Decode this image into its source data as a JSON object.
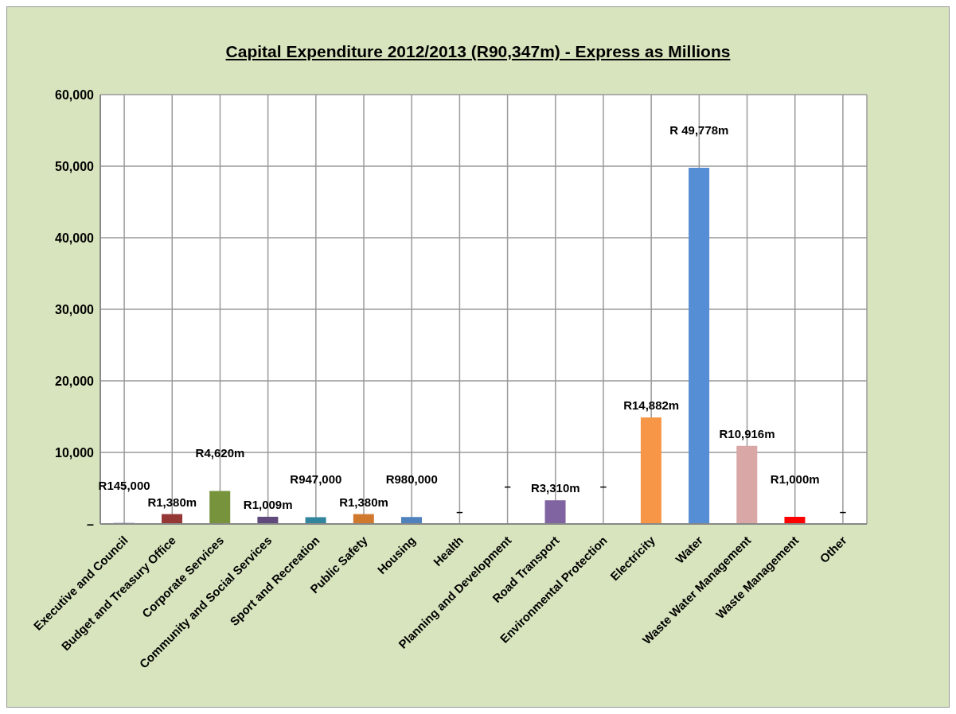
{
  "chart_data": {
    "type": "bar",
    "title": "Capital Expenditure 2012/2013 (R90,347m) - Express as Millions",
    "categories": [
      "Executive and Council",
      "Budget and Treasury Office",
      "Corporate Services",
      "Community and Social Services",
      "Sport and Recreation",
      "Public Safety",
      "Housing",
      "Health",
      "Planning and Development",
      "Road Transport",
      "Environmental Protection",
      "Electricity",
      "Water",
      "Waste Water Management",
      "Waste Management",
      "Other"
    ],
    "values": [
      145,
      1380,
      4620,
      1009,
      947,
      1380,
      980,
      0,
      0,
      3310,
      0,
      14882,
      49778,
      10916,
      1000,
      0
    ],
    "value_labels": [
      "R145,000",
      "R1,380m",
      "R4,620m",
      "R1,009m",
      "R947,000",
      "R1,380m",
      "R980,000",
      "–",
      "–",
      "R3,310m",
      "–",
      "R14,882m",
      "R 49,778m",
      "R10,916m",
      "R1,000m",
      "–"
    ],
    "colors": [
      "#5a6fa0",
      "#953735",
      "#77933c",
      "#604a7b",
      "#31859c",
      "#d0782e",
      "#4f81bd",
      "#4f81bd",
      "#4f81bd",
      "#8064a2",
      "#4f81bd",
      "#f79646",
      "#558ed5",
      "#d9a7a6",
      "#ff0000",
      "#4f81bd"
    ],
    "ylim": [
      0,
      60000
    ],
    "yticks": [
      {
        "value": 0,
        "label": "–"
      },
      {
        "value": 10000,
        "label": "10,000"
      },
      {
        "value": 20000,
        "label": "20,000"
      },
      {
        "value": 30000,
        "label": "30,000"
      },
      {
        "value": 40000,
        "label": "40,000"
      },
      {
        "value": 50000,
        "label": "50,000"
      },
      {
        "value": 60000,
        "label": "60,000"
      }
    ],
    "grid": true,
    "legend": false
  }
}
